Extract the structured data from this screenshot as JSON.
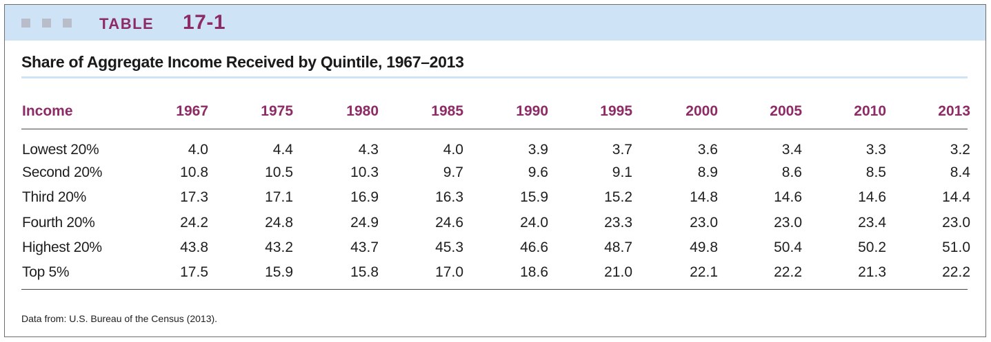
{
  "header": {
    "label": "TABLE",
    "number": "17-1"
  },
  "title": "Share of Aggregate Income Received by Quintile, 1967–2013",
  "table": {
    "columns": [
      "Income",
      "1967",
      "1975",
      "1980",
      "1985",
      "1990",
      "1995",
      "2000",
      "2005",
      "2010",
      "2013"
    ],
    "rows": [
      {
        "label": "Lowest 20%",
        "values": [
          "4.0",
          "4.4",
          "4.3",
          "4.0",
          "3.9",
          "3.7",
          "3.6",
          "3.4",
          "3.3",
          "3.2"
        ]
      },
      {
        "label": "Second 20%",
        "values": [
          "10.8",
          "10.5",
          "10.3",
          "9.7",
          "9.6",
          "9.1",
          "8.9",
          "8.6",
          "8.5",
          "8.4"
        ]
      },
      {
        "label": "Third 20%",
        "values": [
          "17.3",
          "17.1",
          "16.9",
          "16.3",
          "15.9",
          "15.2",
          "14.8",
          "14.6",
          "14.6",
          "14.4"
        ]
      },
      {
        "label": "Fourth 20%",
        "values": [
          "24.2",
          "24.8",
          "24.9",
          "24.6",
          "24.0",
          "23.3",
          "23.0",
          "23.0",
          "23.4",
          "23.0"
        ]
      },
      {
        "label": "Highest 20%",
        "values": [
          "43.8",
          "43.2",
          "43.7",
          "45.3",
          "46.6",
          "48.7",
          "49.8",
          "50.4",
          "50.2",
          "51.0"
        ]
      },
      {
        "label": "Top 5%",
        "values": [
          "17.5",
          "15.9",
          "15.8",
          "17.0",
          "18.6",
          "21.0",
          "22.1",
          "22.2",
          "21.3",
          "22.2"
        ]
      }
    ]
  },
  "source": "Data from: U.S. Bureau of the Census (2013).",
  "colors": {
    "accent": "#8d2b67",
    "band": "#cfe3f6",
    "squares": "#b9bdc9"
  }
}
